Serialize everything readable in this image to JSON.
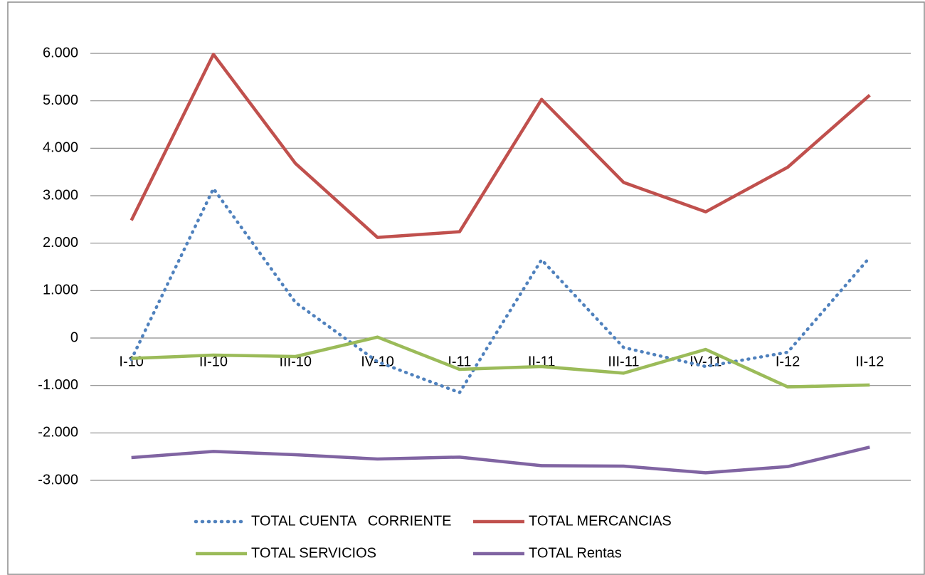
{
  "chart_data": {
    "type": "line",
    "categories": [
      "I-10",
      "II-10",
      "III-10",
      "IV-10",
      "I-11",
      "II-11",
      "III-11",
      "IV-11",
      "I-12",
      "II-12"
    ],
    "series": [
      {
        "name": "TOTAL CUENTA   CORRIENTE",
        "color": "#4f81bd",
        "style": "dotted",
        "values": [
          -450,
          3150,
          750,
          -500,
          -1150,
          1650,
          -200,
          -600,
          -300,
          1700
        ]
      },
      {
        "name": "TOTAL MERCANCIAS",
        "color": "#c0504d",
        "style": "solid",
        "values": [
          2480,
          5980,
          3680,
          2120,
          2240,
          5030,
          3280,
          2660,
          3600,
          5120
        ]
      },
      {
        "name": "TOTAL SERVICIOS",
        "color": "#9bbb59",
        "style": "solid",
        "values": [
          -430,
          -360,
          -390,
          20,
          -660,
          -600,
          -740,
          -240,
          -1030,
          -990
        ]
      },
      {
        "name": "TOTAL Rentas",
        "color": "#8064a2",
        "style": "solid",
        "values": [
          -2520,
          -2390,
          -2460,
          -2550,
          -2510,
          -2690,
          -2700,
          -2840,
          -2710,
          -2300
        ]
      }
    ],
    "ylim": [
      -3000,
      6000
    ],
    "yticks": [
      {
        "value": 6000,
        "label": "6.000"
      },
      {
        "value": 5000,
        "label": "5.000"
      },
      {
        "value": 4000,
        "label": "4.000"
      },
      {
        "value": 3000,
        "label": "3.000"
      },
      {
        "value": 2000,
        "label": "2.000"
      },
      {
        "value": 1000,
        "label": "1.000"
      },
      0,
      {
        "value": -1000,
        "label": "-1.000"
      },
      {
        "value": -2000,
        "label": "-2.000"
      },
      {
        "value": -3000,
        "label": "-3.000"
      }
    ],
    "negative_tick_color": "#ff0000",
    "grid": true,
    "legend": "bottom"
  }
}
